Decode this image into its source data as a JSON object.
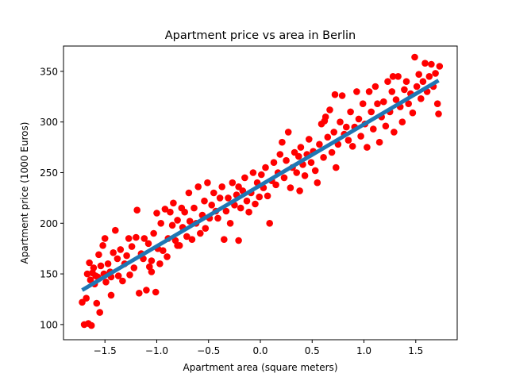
{
  "chart_data": {
    "type": "scatter",
    "title": "Apartment price vs area in Berlin",
    "xlabel": "Apartment area (square meters)",
    "ylabel": "Apartment price (1000 Euros)",
    "xlim": [
      -1.9,
      1.9
    ],
    "ylim": [
      85,
      375
    ],
    "xticks": [
      -1.5,
      -1.0,
      -0.5,
      0.0,
      0.5,
      1.0,
      1.5
    ],
    "xtick_labels": [
      "−1.5",
      "−1.0",
      "−0.5",
      "0.0",
      "0.5",
      "1.0",
      "1.5"
    ],
    "yticks": [
      100,
      150,
      200,
      250,
      300,
      350
    ],
    "ytick_labels": [
      "100",
      "150",
      "200",
      "250",
      "300",
      "350"
    ],
    "grid": false,
    "legend": "none",
    "colors": {
      "points": "#ff0000",
      "fit_line": "#1f77b4",
      "axes": "#000000",
      "background": "#ffffff"
    },
    "series": [
      {
        "type": "scatter",
        "points": [
          [
            -1.72,
            122
          ],
          [
            -1.7,
            100
          ],
          [
            -1.68,
            126
          ],
          [
            -1.67,
            150
          ],
          [
            -1.66,
            101
          ],
          [
            -1.65,
            161
          ],
          [
            -1.64,
            144
          ],
          [
            -1.63,
            99
          ],
          [
            -1.62,
            151
          ],
          [
            -1.61,
            156
          ],
          [
            -1.6,
            140
          ],
          [
            -1.59,
            148
          ],
          [
            -1.58,
            121
          ],
          [
            -1.57,
            147
          ],
          [
            -1.56,
            169
          ],
          [
            -1.55,
            112
          ],
          [
            -1.54,
            158
          ],
          [
            -1.52,
            178
          ],
          [
            -1.51,
            150
          ],
          [
            -1.5,
            185
          ],
          [
            -1.49,
            142
          ],
          [
            -1.47,
            160
          ],
          [
            -1.45,
            152
          ],
          [
            -1.44,
            129
          ],
          [
            -1.42,
            171
          ],
          [
            -1.4,
            193
          ],
          [
            -1.38,
            165
          ],
          [
            -1.37,
            148
          ],
          [
            -1.35,
            174
          ],
          [
            -1.33,
            143
          ],
          [
            -1.31,
            160
          ],
          [
            -1.29,
            168
          ],
          [
            -1.27,
            185
          ],
          [
            -1.26,
            149
          ],
          [
            -1.24,
            177
          ],
          [
            -1.22,
            156
          ],
          [
            -1.2,
            186
          ],
          [
            -1.19,
            213
          ],
          [
            -1.17,
            131
          ],
          [
            -1.15,
            170
          ],
          [
            -1.13,
            165
          ],
          [
            -1.12,
            185
          ],
          [
            -1.1,
            134
          ],
          [
            -1.08,
            180
          ],
          [
            -1.07,
            157
          ],
          [
            -1.05,
            163
          ],
          [
            -1.03,
            190
          ],
          [
            -1.01,
            132
          ],
          [
            -1.0,
            210
          ],
          [
            -0.99,
            175
          ],
          [
            -0.97,
            160
          ],
          [
            -0.96,
            200
          ],
          [
            -0.94,
            173
          ],
          [
            -0.92,
            214
          ],
          [
            -0.9,
            167
          ],
          [
            -0.89,
            185
          ],
          [
            -0.87,
            211
          ],
          [
            -0.85,
            198
          ],
          [
            -0.84,
            220
          ],
          [
            -0.82,
            183
          ],
          [
            -0.8,
            203
          ],
          [
            -0.78,
            178
          ],
          [
            -0.76,
            215
          ],
          [
            -0.75,
            196
          ],
          [
            -0.73,
            211
          ],
          [
            -0.71,
            187
          ],
          [
            -0.69,
            230
          ],
          [
            -0.68,
            202
          ],
          [
            -0.66,
            184
          ],
          [
            -0.64,
            215
          ],
          [
            -0.62,
            200
          ],
          [
            -0.6,
            236
          ],
          [
            -0.58,
            190
          ],
          [
            -0.56,
            208
          ],
          [
            -0.54,
            222
          ],
          [
            -0.53,
            195
          ],
          [
            -0.51,
            240
          ],
          [
            -0.49,
            205
          ],
          [
            -0.47,
            218
          ],
          [
            -0.45,
            230
          ],
          [
            -0.43,
            212
          ],
          [
            -0.41,
            205
          ],
          [
            -0.39,
            225
          ],
          [
            -0.37,
            236
          ],
          [
            -0.35,
            184
          ],
          [
            -0.33,
            212
          ],
          [
            -0.31,
            225
          ],
          [
            -0.29,
            200
          ],
          [
            -0.27,
            240
          ],
          [
            -0.25,
            218
          ],
          [
            -0.23,
            228
          ],
          [
            -0.21,
            236
          ],
          [
            -0.19,
            215
          ],
          [
            -0.17,
            232
          ],
          [
            -0.15,
            245
          ],
          [
            -0.13,
            222
          ],
          [
            -0.11,
            211
          ],
          [
            -0.09,
            230
          ],
          [
            -0.07,
            250
          ],
          [
            -0.05,
            219
          ],
          [
            -0.03,
            240
          ],
          [
            -0.01,
            226
          ],
          [
            0.01,
            248
          ],
          [
            0.03,
            235
          ],
          [
            0.05,
            255
          ],
          [
            0.07,
            227
          ],
          [
            0.09,
            200
          ],
          [
            0.11,
            242
          ],
          [
            0.13,
            260
          ],
          [
            0.15,
            238
          ],
          [
            0.17,
            250
          ],
          [
            0.19,
            268
          ],
          [
            0.21,
            280
          ],
          [
            0.23,
            245
          ],
          [
            0.25,
            262
          ],
          [
            0.27,
            290
          ],
          [
            0.29,
            235
          ],
          [
            0.31,
            255
          ],
          [
            0.33,
            270
          ],
          [
            0.35,
            250
          ],
          [
            0.37,
            266
          ],
          [
            0.39,
            275
          ],
          [
            0.41,
            258
          ],
          [
            0.43,
            247
          ],
          [
            0.45,
            268
          ],
          [
            0.47,
            283
          ],
          [
            0.49,
            260
          ],
          [
            0.51,
            271
          ],
          [
            0.53,
            252
          ],
          [
            0.55,
            240
          ],
          [
            0.57,
            278
          ],
          [
            0.59,
            298
          ],
          [
            0.61,
            265
          ],
          [
            0.63,
            305
          ],
          [
            0.65,
            285
          ],
          [
            0.67,
            312
          ],
          [
            0.69,
            270
          ],
          [
            0.71,
            290
          ],
          [
            0.73,
            255
          ],
          [
            0.75,
            278
          ],
          [
            0.77,
            300
          ],
          [
            0.79,
            326
          ],
          [
            0.81,
            288
          ],
          [
            0.83,
            295
          ],
          [
            0.85,
            282
          ],
          [
            0.87,
            310
          ],
          [
            0.89,
            276
          ],
          [
            0.91,
            295
          ],
          [
            0.93,
            330
          ],
          [
            0.95,
            303
          ],
          [
            0.97,
            286
          ],
          [
            0.99,
            318
          ],
          [
            1.01,
            298
          ],
          [
            1.03,
            275
          ],
          [
            1.05,
            330
          ],
          [
            1.07,
            310
          ],
          [
            1.09,
            293
          ],
          [
            1.11,
            335
          ],
          [
            1.13,
            318
          ],
          [
            1.15,
            280
          ],
          [
            1.17,
            305
          ],
          [
            1.19,
            320
          ],
          [
            1.21,
            296
          ],
          [
            1.23,
            340
          ],
          [
            1.25,
            310
          ],
          [
            1.27,
            330
          ],
          [
            1.29,
            290
          ],
          [
            1.31,
            322
          ],
          [
            1.33,
            345
          ],
          [
            1.35,
            315
          ],
          [
            1.37,
            300
          ],
          [
            1.39,
            332
          ],
          [
            1.41,
            340
          ],
          [
            1.43,
            318
          ],
          [
            1.45,
            328
          ],
          [
            1.47,
            309
          ],
          [
            1.49,
            364
          ],
          [
            1.51,
            335
          ],
          [
            1.53,
            347
          ],
          [
            1.55,
            323
          ],
          [
            1.57,
            340
          ],
          [
            1.59,
            358
          ],
          [
            1.61,
            330
          ],
          [
            1.63,
            345
          ],
          [
            1.65,
            357
          ],
          [
            1.67,
            335
          ],
          [
            1.69,
            348
          ],
          [
            1.71,
            318
          ],
          [
            1.72,
            308
          ],
          [
            1.73,
            355
          ],
          [
            -1.05,
            152
          ],
          [
            -0.21,
            183
          ],
          [
            0.72,
            327
          ],
          [
            -1.44,
            147
          ],
          [
            0.38,
            232
          ],
          [
            1.28,
            345
          ],
          [
            -0.8,
            178
          ],
          [
            0.62,
            301
          ]
        ]
      },
      {
        "type": "line",
        "points": [
          [
            -1.72,
            134
          ],
          [
            1.72,
            341
          ]
        ]
      }
    ]
  }
}
